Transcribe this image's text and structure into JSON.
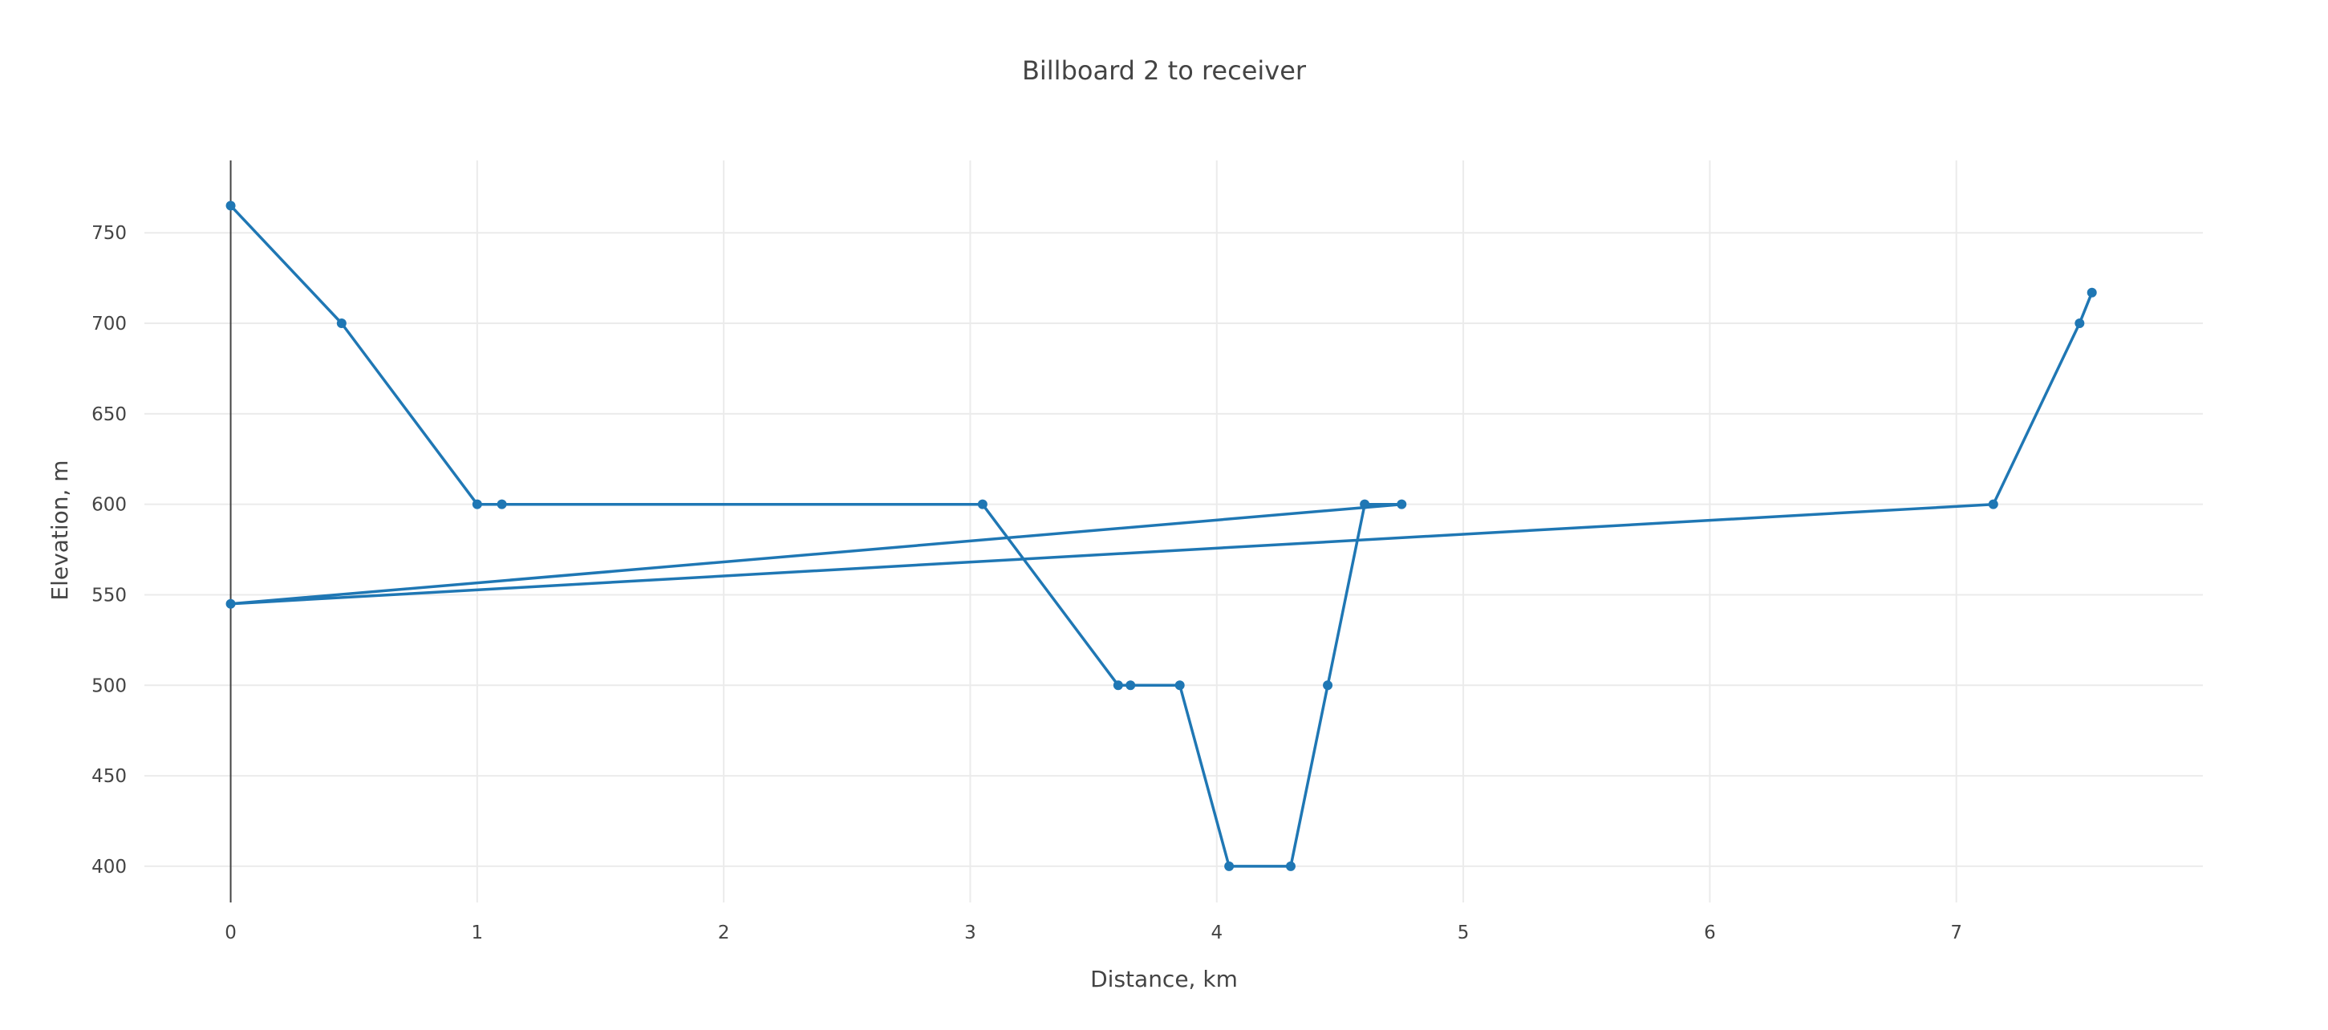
{
  "chart_data": {
    "type": "line",
    "title": "Billboard 2 to receiver",
    "xlabel": "Distance, km",
    "ylabel": "Elevation, m",
    "xlim": [
      -0.35,
      8.0
    ],
    "ylim": [
      380,
      790
    ],
    "xticks": [
      0,
      1,
      2,
      3,
      4,
      5,
      6,
      7
    ],
    "yticks": [
      400,
      450,
      500,
      550,
      600,
      650,
      700,
      750
    ],
    "grid": true,
    "legend": "none",
    "colors": {
      "series": "#1f77b4",
      "grid": "#ebebeb",
      "zeroline": "#444444",
      "text": "#444444"
    },
    "series": [
      {
        "x": [
          0,
          0.45,
          1.0,
          1.1,
          3.05,
          3.6,
          3.65,
          3.85,
          4.05,
          4.3,
          4.45,
          4.6,
          4.75,
          0,
          7.15,
          7.5,
          7.55
        ],
        "y": [
          765,
          700,
          600,
          600,
          600,
          500,
          500,
          500,
          400,
          400,
          500,
          600,
          600,
          545,
          600,
          700,
          717
        ]
      }
    ]
  }
}
